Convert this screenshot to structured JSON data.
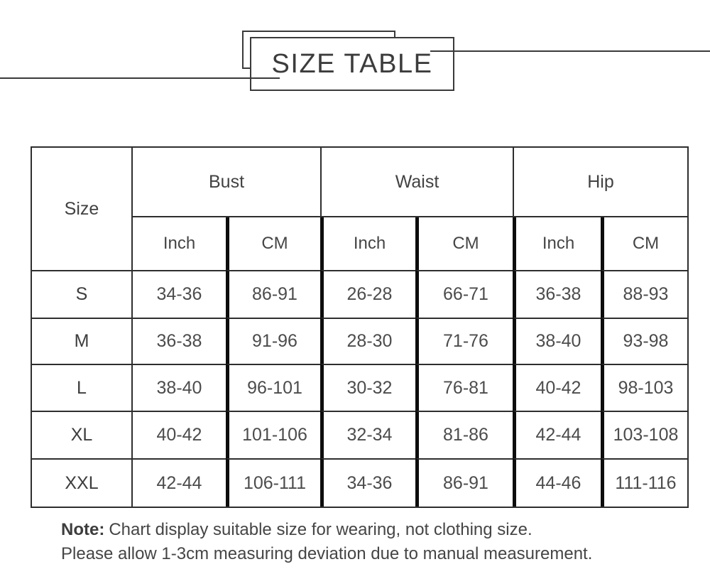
{
  "title": "SIZE TABLE",
  "table": {
    "corner_label": "Size",
    "groups": [
      "Bust",
      "Waist",
      "Hip"
    ],
    "sub_headers": [
      "Inch",
      "CM",
      "Inch",
      "CM",
      "Inch",
      "CM"
    ],
    "rows": [
      {
        "size": "S",
        "values": [
          "34-36",
          "86-91",
          "26-28",
          "66-71",
          "36-38",
          "88-93"
        ]
      },
      {
        "size": "M",
        "values": [
          "36-38",
          "91-96",
          "28-30",
          "71-76",
          "38-40",
          "93-98"
        ]
      },
      {
        "size": "L",
        "values": [
          "38-40",
          "96-101",
          "30-32",
          "76-81",
          "40-42",
          "98-103"
        ]
      },
      {
        "size": "XL",
        "values": [
          "40-42",
          "101-106",
          "32-34",
          "81-86",
          "42-44",
          "103-108"
        ]
      },
      {
        "size": "XXL",
        "values": [
          "42-44",
          "106-111",
          "34-36",
          "86-91",
          "44-46",
          "111-116"
        ]
      }
    ]
  },
  "note": {
    "label": "Note:",
    "line1": "Chart display suitable size for wearing, not clothing size.",
    "line2": "Please allow 1-3cm measuring deviation due to manual measurement."
  },
  "colors": {
    "background": "#ffffff",
    "text": "#4c4c4c",
    "border_thin": "#2e2e2e",
    "border_thick": "#0d0d0d",
    "decor": "#3a3a3a"
  },
  "chart_data": {
    "type": "table",
    "title": "SIZE TABLE",
    "column_groups": [
      {
        "label": "Size",
        "columns": [
          "Size"
        ]
      },
      {
        "label": "Bust",
        "columns": [
          "Inch",
          "CM"
        ]
      },
      {
        "label": "Waist",
        "columns": [
          "Inch",
          "CM"
        ]
      },
      {
        "label": "Hip",
        "columns": [
          "Inch",
          "CM"
        ]
      }
    ],
    "columns": [
      "Size",
      "Bust Inch",
      "Bust CM",
      "Waist Inch",
      "Waist CM",
      "Hip Inch",
      "Hip CM"
    ],
    "rows": [
      [
        "S",
        "34-36",
        "86-91",
        "26-28",
        "66-71",
        "36-38",
        "88-93"
      ],
      [
        "M",
        "36-38",
        "91-96",
        "28-30",
        "71-76",
        "38-40",
        "93-98"
      ],
      [
        "L",
        "38-40",
        "96-101",
        "30-32",
        "76-81",
        "40-42",
        "98-103"
      ],
      [
        "XL",
        "40-42",
        "101-106",
        "32-34",
        "81-86",
        "42-44",
        "103-108"
      ],
      [
        "XXL",
        "42-44",
        "106-111",
        "34-36",
        "86-91",
        "44-46",
        "111-116"
      ]
    ],
    "notes": [
      "Note: Chart display suitable size for wearing, not clothing size.",
      "Please allow 1-3cm measuring deviation due to manual measurement."
    ]
  }
}
